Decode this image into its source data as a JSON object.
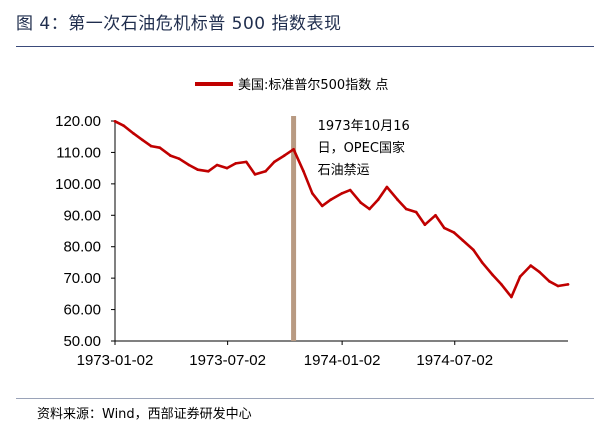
{
  "figure": {
    "title": "图 4：第一次石油危机标普 500 指数表现",
    "source": "资料来源：Wind，西部证券研发中心"
  },
  "chart_data": {
    "type": "line",
    "title": "",
    "xlabel": "",
    "ylabel": "",
    "ylim": [
      50,
      120
    ],
    "xlim": [
      "1973-01-02",
      "1974-12-31"
    ],
    "y_ticks": [
      "50.00",
      "60.00",
      "70.00",
      "80.00",
      "90.00",
      "100.00",
      "110.00",
      "120.00"
    ],
    "x_ticks": [
      "1973-01-02",
      "1973-07-02",
      "1974-01-02",
      "1974-07-02"
    ],
    "grid": false,
    "legend_position": "top",
    "series": [
      {
        "name": "美国:标准普尔500指数 点",
        "color": "#c00000",
        "x": [
          "1973-01-02",
          "1973-01-16",
          "1973-02-01",
          "1973-02-15",
          "1973-03-01",
          "1973-03-15",
          "1973-04-01",
          "1973-04-15",
          "1973-05-01",
          "1973-05-15",
          "1973-06-01",
          "1973-06-15",
          "1973-07-01",
          "1973-07-15",
          "1973-08-01",
          "1973-08-15",
          "1973-09-01",
          "1973-09-15",
          "1973-10-01",
          "1973-10-16",
          "1973-11-01",
          "1973-11-15",
          "1973-12-01",
          "1973-12-15",
          "1974-01-02",
          "1974-01-15",
          "1974-02-01",
          "1974-02-15",
          "1974-03-01",
          "1974-03-15",
          "1974-04-01",
          "1974-04-15",
          "1974-05-01",
          "1974-05-15",
          "1974-06-01",
          "1974-06-15",
          "1974-07-01",
          "1974-07-15",
          "1974-08-01",
          "1974-08-15",
          "1974-09-01",
          "1974-09-15",
          "1974-10-01",
          "1974-10-15",
          "1974-11-01",
          "1974-11-15",
          "1974-12-01",
          "1974-12-15",
          "1974-12-31"
        ],
        "values": [
          119.9,
          118.5,
          116.0,
          114.0,
          112.0,
          111.5,
          109.0,
          108.0,
          106.0,
          104.5,
          104.0,
          106.0,
          105.0,
          106.5,
          107.0,
          103.0,
          104.0,
          107.0,
          109.0,
          111.0,
          104.0,
          97.0,
          93.0,
          95.0,
          97.0,
          98.0,
          94.0,
          92.0,
          95.0,
          99.0,
          95.0,
          92.0,
          91.0,
          87.0,
          90.0,
          86.0,
          84.5,
          82.0,
          79.0,
          75.0,
          71.0,
          68.0,
          64.0,
          70.5,
          74.0,
          72.0,
          69.0,
          67.5,
          68.0
        ]
      }
    ],
    "annotations": [
      {
        "x": "1973-10-16",
        "label_lines": [
          "1973年10月16",
          "日，OPEC国家",
          "石油禁运"
        ],
        "color": "#b89a82"
      }
    ]
  }
}
